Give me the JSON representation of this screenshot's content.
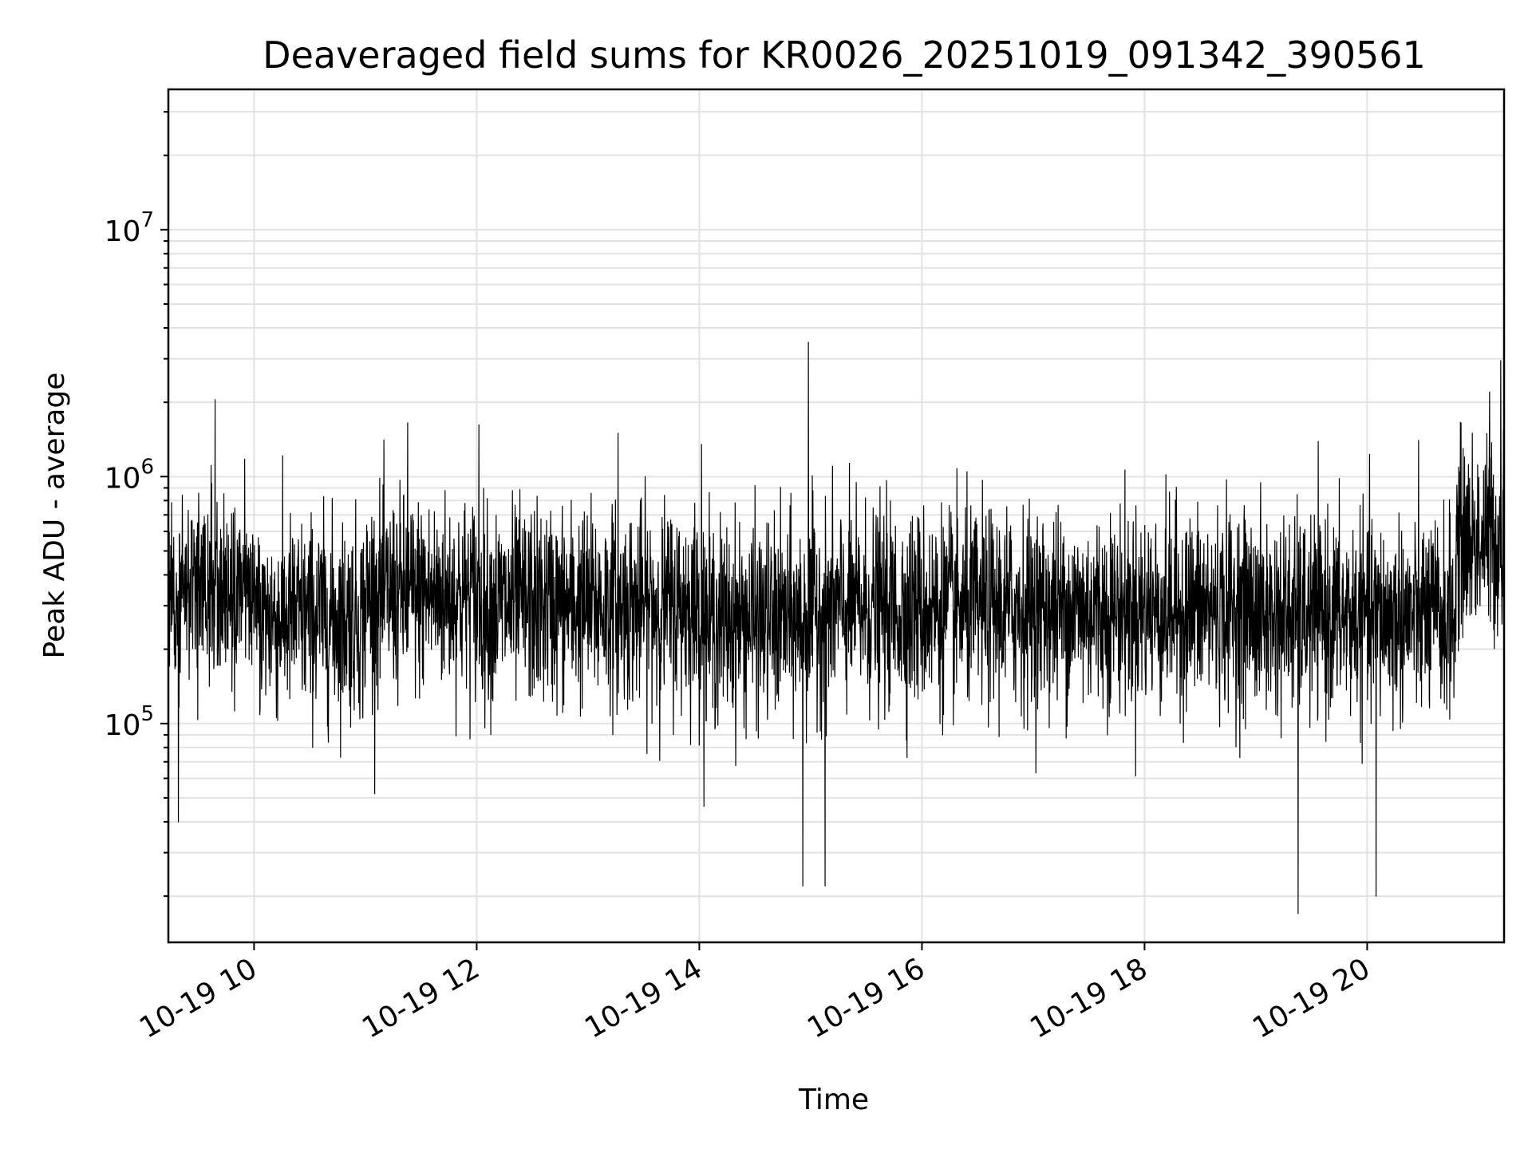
{
  "chart_data": {
    "type": "line",
    "title": "Deaveraged field sums for KR0026_20251019_091342_390561",
    "xlabel": "Time",
    "ylabel": "Peak ADU - average",
    "yscale": "log",
    "ylim": [
      13000,
      37000000
    ],
    "xlim_hours": [
      9.23,
      21.23
    ],
    "grid": true,
    "x_ticks": [
      {
        "value": 10,
        "label": "10-19 10"
      },
      {
        "value": 12,
        "label": "10-19 12"
      },
      {
        "value": 14,
        "label": "10-19 14"
      },
      {
        "value": 16,
        "label": "10-19 16"
      },
      {
        "value": 18,
        "label": "10-19 18"
      },
      {
        "value": 20,
        "label": "10-19 20"
      }
    ],
    "y_ticks": [
      {
        "value": 100000,
        "base": "10",
        "exp": "5"
      },
      {
        "value": 1000000,
        "base": "10",
        "exp": "6"
      },
      {
        "value": 10000000,
        "base": "10",
        "exp": "7"
      }
    ],
    "series": [
      {
        "name": "deaveraged field sum",
        "color": "#000000",
        "sampling": "about 4500 noisy samples (lognormal around ~300000); notable peaks listed",
        "baseline_segments": [
          {
            "from": 9.23,
            "to": 10.0,
            "median": 350000
          },
          {
            "from": 10.0,
            "to": 11.0,
            "median": 270000
          },
          {
            "from": 11.0,
            "to": 12.0,
            "median": 330000
          },
          {
            "from": 12.0,
            "to": 13.0,
            "median": 300000
          },
          {
            "from": 13.0,
            "to": 14.0,
            "median": 300000
          },
          {
            "from": 14.0,
            "to": 15.0,
            "median": 260000
          },
          {
            "from": 15.0,
            "to": 19.0,
            "median": 290000
          },
          {
            "from": 19.0,
            "to": 20.8,
            "median": 270000
          },
          {
            "from": 20.8,
            "to": 21.23,
            "median": 550000
          }
        ],
        "peaks": [
          {
            "x": 9.65,
            "y": 2050000
          },
          {
            "x": 9.32,
            "y": 40000
          },
          {
            "x": 11.38,
            "y": 1650000
          },
          {
            "x": 12.02,
            "y": 1620000
          },
          {
            "x": 13.27,
            "y": 1500000
          },
          {
            "x": 14.02,
            "y": 1350000
          },
          {
            "x": 14.98,
            "y": 3500000
          },
          {
            "x": 14.93,
            "y": 22000
          },
          {
            "x": 15.13,
            "y": 22000
          },
          {
            "x": 19.38,
            "y": 17000
          },
          {
            "x": 20.08,
            "y": 20000
          },
          {
            "x": 21.1,
            "y": 2200000
          },
          {
            "x": 21.2,
            "y": 2950000
          }
        ]
      }
    ]
  }
}
